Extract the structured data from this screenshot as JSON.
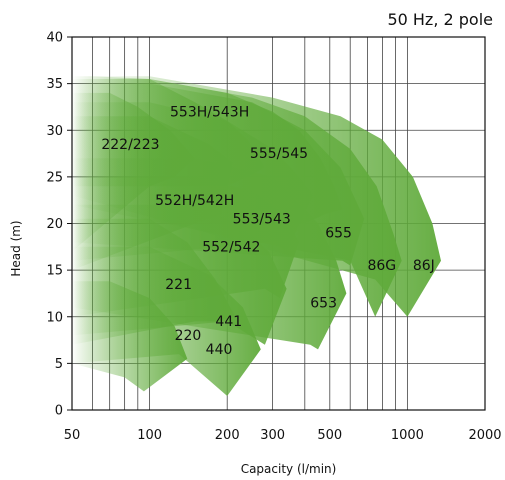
{
  "chart_data": {
    "type": "area",
    "title": "50 Hz, 2 pole",
    "xlabel": "Capacity (l/min)",
    "ylabel": "Head (m)",
    "xscale": "log",
    "xlim": [
      50,
      2000
    ],
    "ylim": [
      0,
      40
    ],
    "x_ticks": [
      50,
      100,
      200,
      300,
      500,
      1000,
      2000
    ],
    "x_tick_labels": [
      "50",
      "100",
      "200",
      "300",
      "500",
      "1000",
      "2000"
    ],
    "y_ticks": [
      0,
      5,
      10,
      15,
      20,
      25,
      30,
      35,
      40
    ],
    "y_tick_labels": [
      "0",
      "5",
      "10",
      "15",
      "20",
      "25",
      "30",
      "35",
      "40"
    ],
    "x_gridlines": [
      50,
      60,
      70,
      80,
      90,
      100,
      200,
      300,
      400,
      500,
      600,
      700,
      800,
      900,
      1000,
      2000
    ],
    "grid": true,
    "colors": {
      "area": "#5faa3a",
      "grid": "#444444"
    },
    "series": [
      {
        "name": "220",
        "label_at": [
          125,
          7.5
        ],
        "outline": [
          [
            50,
            5
          ],
          [
            80,
            3.5
          ],
          [
            95,
            2
          ],
          [
            140,
            5.5
          ],
          [
            125,
            9
          ],
          [
            100,
            12
          ],
          [
            70,
            13.8
          ],
          [
            50,
            13.8
          ]
        ]
      },
      {
        "name": "440",
        "label_at": [
          165,
          6
        ],
        "outline": [
          [
            50,
            5
          ],
          [
            130,
            6
          ],
          [
            200,
            1.5
          ],
          [
            270,
            6.5
          ],
          [
            230,
            11
          ],
          [
            170,
            14.5
          ],
          [
            100,
            17.5
          ],
          [
            50,
            17.5
          ]
        ]
      },
      {
        "name": "221",
        "label_at": [
          115,
          13
        ],
        "outline": [
          [
            50,
            7
          ],
          [
            150,
            9.5
          ],
          [
            180,
            9.5
          ],
          [
            215,
            10
          ],
          [
            180,
            14
          ],
          [
            140,
            18
          ],
          [
            100,
            20.5
          ],
          [
            50,
            20.5
          ]
        ]
      },
      {
        "name": "441",
        "label_at": [
          180,
          9
        ],
        "outline": [
          [
            50,
            8
          ],
          [
            200,
            9.5
          ],
          [
            280,
            7
          ],
          [
            340,
            13
          ],
          [
            290,
            17
          ],
          [
            220,
            20
          ],
          [
            150,
            22
          ],
          [
            50,
            22
          ]
        ]
      },
      {
        "name": "552/542",
        "label_at": [
          160,
          17
        ],
        "outline": [
          [
            50,
            10
          ],
          [
            280,
            13
          ],
          [
            320,
            12
          ],
          [
            380,
            18
          ],
          [
            330,
            21
          ],
          [
            250,
            23.5
          ],
          [
            150,
            25
          ],
          [
            50,
            25
          ]
        ]
      },
      {
        "name": "653",
        "label_at": [
          420,
          11
        ],
        "outline": [
          [
            50,
            11
          ],
          [
            420,
            7
          ],
          [
            450,
            6.5
          ],
          [
            580,
            12.5
          ],
          [
            530,
            16
          ],
          [
            450,
            20
          ],
          [
            300,
            25
          ],
          [
            150,
            27
          ],
          [
            50,
            27
          ]
        ]
      },
      {
        "name": "552H/542H",
        "label_at": [
          105,
          22
        ],
        "outline": [
          [
            50,
            15
          ],
          [
            150,
            20
          ],
          [
            190,
            21
          ],
          [
            210,
            26.5
          ],
          [
            170,
            28.5
          ],
          [
            130,
            30
          ],
          [
            100,
            31.5
          ],
          [
            50,
            31.5
          ]
        ]
      },
      {
        "name": "553/543",
        "label_at": [
          210,
          20
        ],
        "outline": [
          [
            50,
            16
          ],
          [
            300,
            18
          ],
          [
            340,
            17
          ],
          [
            430,
            23
          ],
          [
            380,
            25
          ],
          [
            300,
            28
          ],
          [
            200,
            31
          ],
          [
            100,
            33
          ],
          [
            50,
            33
          ]
        ]
      },
      {
        "name": "222/223",
        "label_at": [
          65,
          28
        ],
        "outline": [
          [
            50,
            17
          ],
          [
            100,
            24
          ],
          [
            125,
            25
          ],
          [
            150,
            27
          ],
          [
            120,
            30
          ],
          [
            90,
            32.5
          ],
          [
            70,
            34
          ],
          [
            50,
            34
          ]
        ]
      },
      {
        "name": "655",
        "label_at": [
          480,
          18.5
        ],
        "outline": [
          [
            50,
            18
          ],
          [
            560,
            16
          ],
          [
            600,
            15.5
          ],
          [
            680,
            20.5
          ],
          [
            630,
            22.5
          ],
          [
            550,
            26
          ],
          [
            400,
            30
          ],
          [
            250,
            33
          ],
          [
            100,
            35
          ],
          [
            50,
            35
          ]
        ]
      },
      {
        "name": "555/545",
        "label_at": [
          245,
          27
        ],
        "outline": [
          [
            50,
            20
          ],
          [
            400,
            20
          ],
          [
            480,
            21
          ],
          [
            560,
            21.5
          ],
          [
            520,
            24
          ],
          [
            460,
            27
          ],
          [
            380,
            30
          ],
          [
            300,
            32
          ],
          [
            200,
            34
          ],
          [
            100,
            35.5
          ],
          [
            50,
            35.5
          ]
        ]
      },
      {
        "name": "86G",
        "label_at": [
          700,
          15
        ],
        "outline": [
          [
            50,
            22
          ],
          [
            600,
            16
          ],
          [
            750,
            10
          ],
          [
            950,
            16
          ],
          [
            880,
            19
          ],
          [
            760,
            24
          ],
          [
            600,
            28
          ],
          [
            400,
            31.5
          ],
          [
            250,
            33.5
          ],
          [
            100,
            35.5
          ],
          [
            50,
            35.5
          ]
        ]
      },
      {
        "name": "553H/543H",
        "label_at": [
          120,
          31.5
        ],
        "outline": [
          [
            50,
            24
          ],
          [
            200,
            24
          ],
          [
            240,
            25
          ],
          [
            280,
            26
          ],
          [
            240,
            29
          ],
          [
            200,
            31
          ],
          [
            150,
            33
          ],
          [
            100,
            35.5
          ],
          [
            60,
            35.8
          ],
          [
            50,
            35.8
          ]
        ]
      },
      {
        "name": "86J",
        "label_at": [
          1050,
          15
        ],
        "outline": [
          [
            50,
            23
          ],
          [
            750,
            14
          ],
          [
            1000,
            10
          ],
          [
            1350,
            16
          ],
          [
            1250,
            20
          ],
          [
            1050,
            25
          ],
          [
            800,
            29
          ],
          [
            550,
            31.5
          ],
          [
            300,
            33.5
          ],
          [
            100,
            35.8
          ],
          [
            50,
            35.8
          ]
        ]
      }
    ]
  }
}
